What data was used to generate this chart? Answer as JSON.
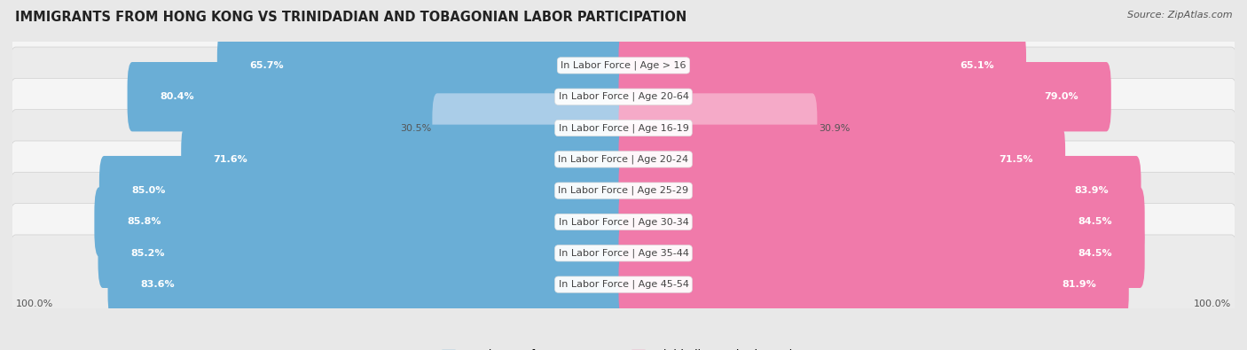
{
  "title": "IMMIGRANTS FROM HONG KONG VS TRINIDADIAN AND TOBAGONIAN LABOR PARTICIPATION",
  "source": "Source: ZipAtlas.com",
  "categories": [
    "In Labor Force | Age > 16",
    "In Labor Force | Age 20-64",
    "In Labor Force | Age 16-19",
    "In Labor Force | Age 20-24",
    "In Labor Force | Age 25-29",
    "In Labor Force | Age 30-34",
    "In Labor Force | Age 35-44",
    "In Labor Force | Age 45-54"
  ],
  "hk_values": [
    65.7,
    80.4,
    30.5,
    71.6,
    85.0,
    85.8,
    85.2,
    83.6
  ],
  "tt_values": [
    65.1,
    79.0,
    30.9,
    71.5,
    83.9,
    84.5,
    84.5,
    81.9
  ],
  "hk_color": "#6aaed6",
  "hk_color_light": "#aacde8",
  "tt_color": "#f07aaa",
  "tt_color_light": "#f5aac8",
  "hk_label": "Immigrants from Hong Kong",
  "tt_label": "Trinidadian and Tobagonian",
  "bg_color": "#e8e8e8",
  "row_bg_color_light": "#f5f5f5",
  "row_bg_color_dark": "#ebebeb",
  "title_fontsize": 10.5,
  "source_fontsize": 8,
  "label_fontsize": 8,
  "value_fontsize": 8,
  "max_val": 100.0,
  "bar_height": 0.62,
  "small_threshold": 40,
  "bottom_label": "100.0%"
}
